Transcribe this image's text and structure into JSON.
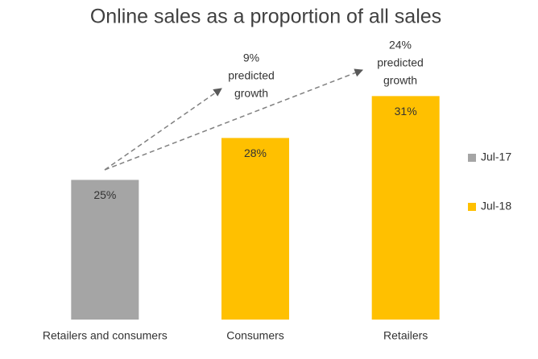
{
  "chart_data": {
    "type": "bar",
    "title": "Online sales as a proportion of all sales",
    "categories": [
      "Retailers and consumers",
      "Consumers",
      "Retailers"
    ],
    "series": [
      {
        "name": "Jul-17",
        "color": "#a5a5a5",
        "values": [
          25,
          null,
          null
        ],
        "value_labels": [
          "25%",
          null,
          null
        ]
      },
      {
        "name": "Jul-18",
        "color": "#ffc000",
        "values": [
          null,
          28,
          31
        ],
        "value_labels": [
          null,
          "28%",
          "31%"
        ]
      }
    ],
    "ylim": [
      15,
      32
    ],
    "legend": "right",
    "annotations": [
      {
        "lines": [
          "9%",
          "predicted",
          "growth"
        ]
      },
      {
        "lines": [
          "24%",
          "predicted",
          "growth"
        ]
      }
    ]
  }
}
